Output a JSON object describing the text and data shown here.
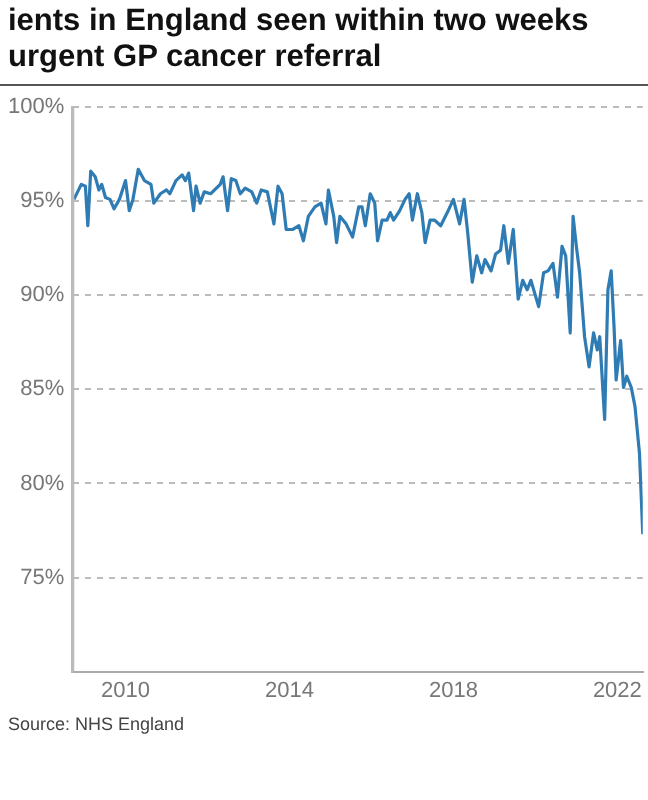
{
  "chart_data": {
    "type": "line",
    "title": "ients in England seen within two weeks\nurgent GP cancer referral",
    "annotations": [
      "Source: NHS England"
    ],
    "series": [
      {
        "color": "#2f7bb3",
        "x": [
          2008.74,
          2008.92,
          2009.02,
          2009.08,
          2009.15,
          2009.26,
          2009.35,
          2009.42,
          2009.51,
          2009.62,
          2009.72,
          2009.85,
          2010.0,
          2010.09,
          2010.18,
          2010.31,
          2010.46,
          2010.62,
          2010.69,
          2010.85,
          2011.0,
          2011.08,
          2011.23,
          2011.38,
          2011.46,
          2011.54,
          2011.66,
          2011.72,
          2011.82,
          2011.92,
          2012.08,
          2012.31,
          2012.38,
          2012.49,
          2012.58,
          2012.69,
          2012.8,
          2012.92,
          2013.08,
          2013.2,
          2013.31,
          2013.46,
          2013.62,
          2013.72,
          2013.82,
          2013.92,
          2014.08,
          2014.23,
          2014.34,
          2014.46,
          2014.62,
          2014.77,
          2014.89,
          2014.95,
          2015.08,
          2015.15,
          2015.23,
          2015.38,
          2015.54,
          2015.69,
          2015.77,
          2015.85,
          2015.97,
          2016.08,
          2016.15,
          2016.26,
          2016.38,
          2016.46,
          2016.54,
          2016.69,
          2016.82,
          2016.92,
          2017.0,
          2017.12,
          2017.23,
          2017.31,
          2017.43,
          2017.54,
          2017.69,
          2017.85,
          2018.0,
          2018.15,
          2018.26,
          2018.35,
          2018.46,
          2018.57,
          2018.69,
          2018.77,
          2018.92,
          2019.03,
          2019.15,
          2019.23,
          2019.34,
          2019.46,
          2019.58,
          2019.69,
          2019.8,
          2019.89,
          2020.08,
          2020.2,
          2020.31,
          2020.43,
          2020.54,
          2020.65,
          2020.74,
          2020.85,
          2020.92,
          2021.0,
          2021.08,
          2021.2,
          2021.31,
          2021.42,
          2021.51,
          2021.57,
          2021.69,
          2021.77,
          2021.85,
          2021.92,
          2021.97,
          2022.08,
          2022.15,
          2022.23,
          2022.34,
          2022.43,
          2022.54,
          2022.62
        ],
        "values": [
          95.1,
          95.9,
          95.8,
          93.7,
          96.6,
          96.3,
          95.6,
          95.9,
          95.2,
          95.1,
          94.6,
          95.1,
          96.1,
          94.5,
          95.1,
          96.7,
          96.1,
          95.9,
          94.9,
          95.4,
          95.6,
          95.4,
          96.1,
          96.4,
          96.1,
          96.5,
          94.5,
          95.8,
          94.9,
          95.5,
          95.4,
          95.9,
          96.3,
          94.5,
          96.2,
          96.1,
          95.4,
          95.7,
          95.5,
          94.9,
          95.6,
          95.5,
          93.8,
          95.8,
          95.4,
          93.5,
          93.5,
          93.7,
          92.9,
          94.2,
          94.7,
          94.9,
          93.8,
          95.6,
          94.2,
          92.8,
          94.2,
          93.8,
          93.1,
          94.7,
          94.7,
          93.7,
          95.4,
          94.9,
          92.9,
          94.0,
          94.0,
          94.4,
          94.0,
          94.5,
          95.1,
          95.4,
          94.0,
          95.4,
          94.4,
          92.8,
          94.0,
          94.0,
          93.7,
          94.4,
          95.1,
          93.8,
          95.1,
          93.3,
          90.7,
          92.1,
          91.2,
          91.9,
          91.3,
          92.2,
          92.4,
          93.7,
          91.7,
          93.5,
          89.8,
          90.8,
          90.3,
          90.8,
          89.4,
          91.2,
          91.3,
          91.7,
          89.9,
          92.6,
          92.1,
          88.0,
          94.2,
          92.6,
          91.2,
          87.8,
          86.2,
          88.0,
          87.1,
          87.8,
          83.4,
          90.3,
          91.3,
          88.3,
          85.5,
          87.6,
          85.1,
          85.7,
          85.1,
          84.1,
          81.6,
          77.3
        ]
      }
    ],
    "xlim": [
      2008.7,
      2022.62
    ],
    "xticks": [
      2010,
      2014,
      2018,
      2022
    ],
    "ylim": [
      70,
      100
    ],
    "yticks": [
      {
        "value": 75,
        "label": "75%"
      },
      {
        "value": 80,
        "label": "80%"
      },
      {
        "value": 85,
        "label": "85%"
      },
      {
        "value": 90,
        "label": "90%"
      },
      {
        "value": 95,
        "label": "95%"
      },
      {
        "value": 100,
        "label": "100%"
      }
    ],
    "grid": "y",
    "marker": "none",
    "line_style": "solid",
    "legend": false
  }
}
